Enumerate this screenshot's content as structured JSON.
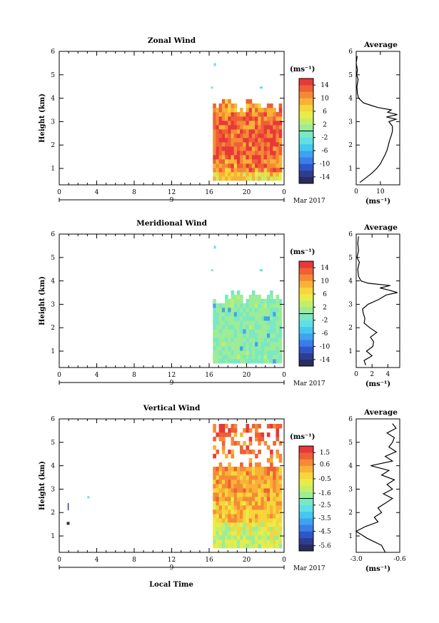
{
  "figure": {
    "xlabel": "Local Time",
    "date_label": "Mar 2017",
    "day_label": "9"
  },
  "colors": {
    "scale": [
      "#2b2b5f",
      "#2e3d8f",
      "#2f56c8",
      "#3a7ee8",
      "#3ea3f0",
      "#44c8f0",
      "#5fe0e6",
      "#7ae8c4",
      "#9cec98",
      "#c4ee6a",
      "#e9ec48",
      "#f6d63a",
      "#f8b236",
      "#f58a36",
      "#ef6034",
      "#e8383a"
    ],
    "avg_line": "#000000"
  },
  "chart_data": [
    {
      "type": "heatmap",
      "title": "Zonal Wind",
      "ylabel": "Height (km)",
      "xlim": [
        0,
        24
      ],
      "ylim": [
        0.3,
        6
      ],
      "xticks": [
        "0",
        "4",
        "8",
        "12",
        "16",
        "20",
        "0"
      ],
      "yticks": [
        "1",
        "2",
        "3",
        "4",
        "5",
        "6"
      ],
      "colorbar": {
        "unit": "(ms⁻¹)",
        "range": [
          -16,
          16
        ],
        "tick_values": [
          14,
          10,
          6,
          2,
          -2,
          -6,
          -10,
          -14
        ],
        "tick_labels": [
          "14",
          "10",
          "6",
          "2",
          "-2",
          "-6",
          "-10",
          "-14"
        ]
      },
      "profile": {
        "title": "Average",
        "xlabel": "(ms⁻¹)",
        "xlim": [
          0,
          18
        ],
        "xticks": [
          "0",
          "10"
        ],
        "xtick_values": [
          0,
          10
        ],
        "height_km": [
          0.4,
          0.6,
          0.8,
          1.0,
          1.2,
          1.4,
          1.6,
          1.8,
          2.0,
          2.2,
          2.4,
          2.6,
          2.8,
          3.0,
          3.1,
          3.2,
          3.3,
          3.4,
          3.5,
          3.6,
          3.7,
          3.8,
          4.0,
          4.2,
          4.5,
          4.8,
          5.0,
          5.2,
          5.5,
          5.8
        ],
        "value": [
          1.5,
          4.0,
          6.5,
          8.5,
          10.0,
          11.0,
          12.0,
          12.8,
          13.3,
          13.8,
          14.5,
          15.0,
          15.0,
          13.5,
          16.5,
          12.5,
          17.0,
          13.0,
          14.5,
          9.0,
          6.0,
          3.0,
          1.0,
          0.5,
          0.3,
          0.8,
          0.2,
          0.5,
          0.0,
          0.4
        ]
      }
    },
    {
      "type": "heatmap",
      "title": "Meridional Wind",
      "ylabel": "Height (km)",
      "xlim": [
        0,
        24
      ],
      "ylim": [
        0.3,
        6
      ],
      "xticks": [
        "0",
        "4",
        "8",
        "12",
        "16",
        "20",
        "0"
      ],
      "yticks": [
        "1",
        "2",
        "3",
        "4",
        "5",
        "6"
      ],
      "colorbar": {
        "unit": "(ms⁻¹)",
        "range": [
          -16,
          16
        ],
        "tick_values": [
          14,
          10,
          6,
          2,
          -2,
          -6,
          -10,
          -14
        ],
        "tick_labels": [
          "14",
          "10",
          "6",
          "2",
          "-2",
          "-6",
          "-10",
          "-14"
        ]
      },
      "profile": {
        "title": "Average",
        "xlabel": "(ms⁻¹)",
        "xlim": [
          0,
          5.5
        ],
        "xticks": [
          "0",
          "2",
          "4"
        ],
        "xtick_values": [
          0,
          2,
          4
        ],
        "height_km": [
          0.4,
          0.6,
          0.8,
          1.0,
          1.2,
          1.4,
          1.6,
          1.8,
          2.0,
          2.2,
          2.4,
          2.6,
          2.8,
          3.0,
          3.2,
          3.4,
          3.5,
          3.6,
          3.7,
          3.8,
          3.9,
          4.0,
          4.2,
          4.5,
          4.8,
          5.0,
          5.3,
          5.6,
          5.9
        ],
        "value": [
          1.2,
          1.0,
          2.0,
          1.3,
          2.1,
          2.2,
          1.8,
          2.6,
          1.7,
          1.0,
          1.1,
          0.9,
          0.8,
          1.5,
          2.8,
          3.8,
          5.2,
          4.2,
          3.0,
          4.3,
          1.5,
          0.6,
          0.3,
          0.2,
          0.4,
          0.1,
          0.3,
          0.2,
          0.3
        ]
      }
    },
    {
      "type": "heatmap",
      "title": "Vertical Wind",
      "ylabel": "Height (km)",
      "xlim": [
        0,
        24
      ],
      "ylim": [
        0.3,
        6
      ],
      "xticks": [
        "0",
        "4",
        "8",
        "12",
        "16",
        "20",
        "0"
      ],
      "yticks": [
        "1",
        "2",
        "3",
        "4",
        "5",
        "6"
      ],
      "colorbar": {
        "unit": "(ms⁻¹)",
        "range": [
          -6,
          2
        ],
        "tick_values": [
          1.5,
          0.6,
          -0.5,
          -1.6,
          -2.5,
          -3.5,
          -4.5,
          -5.6
        ],
        "tick_labels": [
          "1.5",
          "0.6",
          "-0.5",
          "-1.6",
          "-2.5",
          "-3.5",
          "-4.5",
          "-5.6"
        ]
      },
      "profile": {
        "title": "Average",
        "xlabel": "(ms⁻¹)",
        "xlim": [
          -3.0,
          -0.6
        ],
        "xticks": [
          "-3.0",
          "-0.6"
        ],
        "xtick_values": [
          -3.0,
          -0.6
        ],
        "height_km": [
          0.3,
          0.6,
          0.9,
          1.2,
          1.4,
          1.6,
          1.8,
          2.0,
          2.2,
          2.4,
          2.6,
          2.8,
          3.0,
          3.2,
          3.4,
          3.6,
          3.8,
          4.0,
          4.2,
          4.4,
          4.6,
          4.8,
          5.0,
          5.2,
          5.4,
          5.6,
          5.8
        ],
        "value": [
          -1.4,
          -1.6,
          -2.4,
          -3.0,
          -2.5,
          -1.8,
          -2.0,
          -1.6,
          -1.8,
          -1.4,
          -1.0,
          -1.5,
          -1.0,
          -1.3,
          -0.9,
          -1.6,
          -1.2,
          -2.2,
          -1.0,
          -1.4,
          -0.8,
          -1.2,
          -1.0,
          -0.9,
          -1.3,
          -0.8,
          -1.0
        ]
      }
    }
  ]
}
